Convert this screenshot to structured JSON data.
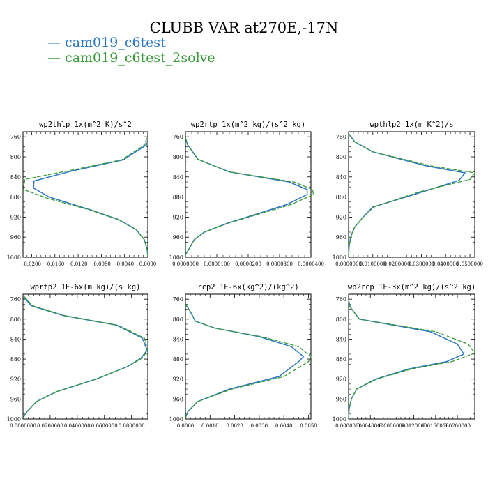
{
  "figure": {
    "title": "CLUBB VAR at270E,-17N",
    "legend": [
      {
        "label": "cam019_c6test",
        "color": "#2a77c1"
      },
      {
        "label": "cam019_c6test_2solve",
        "color": "#3a9a3a"
      }
    ]
  },
  "chart_data": [
    {
      "type": "line",
      "title": "wp2thlp   1x(m^2 K)/s^2",
      "ylim": [
        1000,
        750
      ],
      "y_ticks": [
        760,
        800,
        840,
        880,
        920,
        960,
        1000
      ],
      "xlim": [
        -0.0215,
        0.0
      ],
      "x_ticks": [
        -0.02,
        -0.016,
        -0.012,
        -0.008,
        -0.004,
        0.0
      ],
      "x_tick_labels": [
        "-0.0200",
        "-0.0160",
        "-0.0120",
        "-0.0080",
        "-0.0040",
        "0.0000"
      ],
      "series": [
        {
          "name": "cam019_c6test",
          "color": "#2a77c1",
          "dashed": false,
          "x": [
            -0.0003,
            -0.0002,
            -0.0042,
            -0.013,
            -0.0196,
            -0.0197,
            -0.017,
            -0.01,
            -0.005,
            -0.002,
            -0.0006,
            -0.0001,
            0.0
          ],
          "y": [
            766,
            776,
            806,
            828,
            848,
            862,
            880,
            905,
            925,
            945,
            965,
            985,
            998
          ]
        },
        {
          "name": "cam019_c6test_2solve",
          "color": "#3a9a3a",
          "dashed": true,
          "x": [
            -0.0002,
            -0.0005,
            -0.0045,
            -0.0138,
            -0.0212,
            -0.0214,
            -0.0175,
            -0.0102,
            -0.0051,
            -0.002,
            -0.0006,
            -0.0001,
            0.0
          ],
          "y": [
            762,
            776,
            806,
            828,
            845,
            865,
            882,
            905,
            925,
            945,
            965,
            985,
            998
          ]
        }
      ]
    },
    {
      "type": "line",
      "title": "wp2rtp   1x(m^2 kg)/(s^2 kg)",
      "ylim": [
        1000,
        750
      ],
      "y_ticks": [
        760,
        800,
        840,
        880,
        920,
        960,
        1000
      ],
      "xlim": [
        0.0,
        4e-05
      ],
      "x_ticks": [
        0.0,
        1e-05,
        2e-05,
        3e-05,
        4e-05
      ],
      "x_tick_labels": [
        "0.0000000",
        "0.0000100",
        "0.0000200",
        "0.0000300",
        "0.0000400"
      ],
      "series": [
        {
          "name": "cam019_c6test",
          "color": "#2a77c1",
          "dashed": false,
          "x": [
            0.0,
            7e-07,
            4e-06,
            1.4e-05,
            3.3e-05,
            3.88e-05,
            3.88e-05,
            3.23e-05,
            1.35e-05,
            6e-06,
            2.8e-06,
            1e-06,
            0.0
          ],
          "y": [
            762,
            776,
            805,
            830,
            850,
            865,
            875,
            895,
            932,
            950,
            965,
            985,
            995
          ]
        },
        {
          "name": "cam019_c6test_2solve",
          "color": "#3a9a3a",
          "dashed": true,
          "x": [
            0.0,
            7e-07,
            4e-06,
            1.4e-05,
            3.45e-05,
            4.05e-05,
            4.08e-05,
            3.37e-05,
            1.37e-05,
            6e-06,
            2.8e-06,
            1e-06,
            0.0
          ],
          "y": [
            762,
            776,
            805,
            830,
            850,
            865,
            875,
            895,
            932,
            950,
            965,
            985,
            995
          ]
        }
      ]
    },
    {
      "type": "line",
      "title": "wpthlp2   1x(m K^2)/s",
      "ylim": [
        1000,
        750
      ],
      "y_ticks": [
        760,
        800,
        840,
        880,
        920,
        960,
        1000
      ],
      "xlim": [
        0.0,
        0.052
      ],
      "x_ticks": [
        0.0,
        0.01,
        0.02,
        0.03,
        0.04,
        0.05
      ],
      "x_tick_labels": [
        "0.0000000",
        "0.0100000",
        "0.0200000",
        "0.0300000",
        "0.0400000",
        "0.0500000"
      ],
      "series": [
        {
          "name": "cam019_c6test",
          "color": "#2a77c1",
          "dashed": false,
          "x": [
            0.0003,
            0.0025,
            0.01,
            0.032,
            0.048,
            0.0455,
            0.027,
            0.01,
            0.006,
            0.0025,
            0.0008,
            0.0002,
            0.0
          ],
          "y": [
            755,
            770,
            790,
            818,
            832,
            847,
            875,
            900,
            920,
            940,
            960,
            980,
            998
          ]
        },
        {
          "name": "cam019_c6test_2solve",
          "color": "#3a9a3a",
          "dashed": true,
          "x": [
            0.0003,
            0.0025,
            0.01,
            0.034,
            0.052,
            0.05,
            0.029,
            0.0104,
            0.006,
            0.0025,
            0.0008,
            0.0002,
            0.0
          ],
          "y": [
            755,
            770,
            790,
            818,
            832,
            845,
            870,
            900,
            920,
            940,
            960,
            980,
            998
          ]
        }
      ]
    },
    {
      "type": "line",
      "title": "wprtp2   1E-6x(m kg)/(s kg)",
      "ylim": [
        1000,
        750
      ],
      "y_ticks": [
        760,
        800,
        840,
        880,
        920,
        960,
        1000
      ],
      "xlim": [
        0.0,
        0.092
      ],
      "x_ticks": [
        0.0,
        0.02,
        0.04,
        0.06,
        0.08
      ],
      "x_tick_labels": [
        "0.0000000",
        "0.0200000",
        "0.0400000",
        "0.0600000",
        "0.0800000"
      ],
      "series": [
        {
          "name": "cam019_c6test",
          "color": "#2a77c1",
          "dashed": false,
          "x": [
            0.0005,
            0.006,
            0.03,
            0.069,
            0.088,
            0.0915,
            0.087,
            0.077,
            0.054,
            0.025,
            0.01,
            0.003,
            0.0
          ],
          "y": [
            755,
            773,
            793,
            812,
            838,
            862,
            878,
            895,
            920,
            945,
            965,
            985,
            998
          ]
        },
        {
          "name": "cam019_c6test_2solve",
          "color": "#3a9a3a",
          "dashed": true,
          "x": [
            0.001,
            0.007,
            0.031,
            0.07,
            0.0895,
            0.092,
            0.088,
            0.077,
            0.054,
            0.025,
            0.01,
            0.003,
            0.0
          ],
          "y": [
            755,
            773,
            793,
            812,
            838,
            862,
            878,
            895,
            920,
            945,
            965,
            985,
            998
          ]
        }
      ]
    },
    {
      "type": "line",
      "title": "rcp2   1E-6x(kg^2)/(kg^2)",
      "ylim": [
        1000,
        750
      ],
      "y_ticks": [
        760,
        800,
        840,
        880,
        920,
        960,
        1000
      ],
      "xlim": [
        0.0,
        0.0051
      ],
      "x_ticks": [
        0.0,
        0.001,
        0.002,
        0.003,
        0.004,
        0.005
      ],
      "x_tick_labels": [
        "0.0000",
        "0.0010",
        "0.0020",
        "0.0030",
        "0.0040",
        "0.0050"
      ],
      "series": [
        {
          "name": "cam019_c6test",
          "color": "#2a77c1",
          "dashed": false,
          "x": [
            0.0,
            0.0002,
            0.0004,
            0.0012,
            0.003,
            0.0043,
            0.0048,
            0.0046,
            0.0038,
            0.0018,
            0.0005,
            0.0001,
            0.0
          ],
          "y": [
            770,
            785,
            804,
            818,
            835,
            855,
            875,
            885,
            915,
            940,
            965,
            985,
            998
          ]
        },
        {
          "name": "cam019_c6test_2solve",
          "color": "#3a9a3a",
          "dashed": true,
          "x": [
            0.0,
            0.0002,
            0.0004,
            0.0012,
            0.0031,
            0.0046,
            0.0051,
            0.005,
            0.004,
            0.0019,
            0.0005,
            0.0001,
            0.0
          ],
          "y": [
            770,
            785,
            804,
            818,
            835,
            855,
            875,
            885,
            915,
            940,
            965,
            985,
            998
          ]
        }
      ]
    },
    {
      "type": "line",
      "title": "wp2rcp   1E-3x(m^2 kg)/(s^2 kg)",
      "ylim": [
        1000,
        750
      ],
      "y_ticks": [
        760,
        800,
        840,
        880,
        920,
        960,
        1000
      ],
      "xlim": [
        0.0,
        0.0232
      ],
      "x_ticks": [
        0.0,
        0.004,
        0.008,
        0.012,
        0.016,
        0.02
      ],
      "x_tick_labels": [
        "0.0000000",
        "0.0040000",
        "0.0080000",
        "0.0120000",
        "0.0160000",
        "0.0200000"
      ],
      "series": [
        {
          "name": "cam019_c6test",
          "color": "#2a77c1",
          "dashed": false,
          "x": [
            0.0,
            0.0003,
            0.002,
            0.015,
            0.02,
            0.0212,
            0.018,
            0.011,
            0.005,
            0.0015,
            0.0005,
            0.0001,
            0.0
          ],
          "y": [
            762,
            776,
            800,
            825,
            850,
            870,
            885,
            900,
            920,
            940,
            960,
            980,
            998
          ]
        },
        {
          "name": "cam019_c6test_2solve",
          "color": "#3a9a3a",
          "dashed": true,
          "x": [
            0.0,
            0.0003,
            0.002,
            0.016,
            0.022,
            0.0232,
            0.019,
            0.0115,
            0.0052,
            0.0015,
            0.0005,
            0.0001,
            0.0
          ],
          "y": [
            762,
            776,
            800,
            825,
            850,
            868,
            885,
            900,
            920,
            940,
            960,
            980,
            998
          ]
        }
      ]
    }
  ]
}
